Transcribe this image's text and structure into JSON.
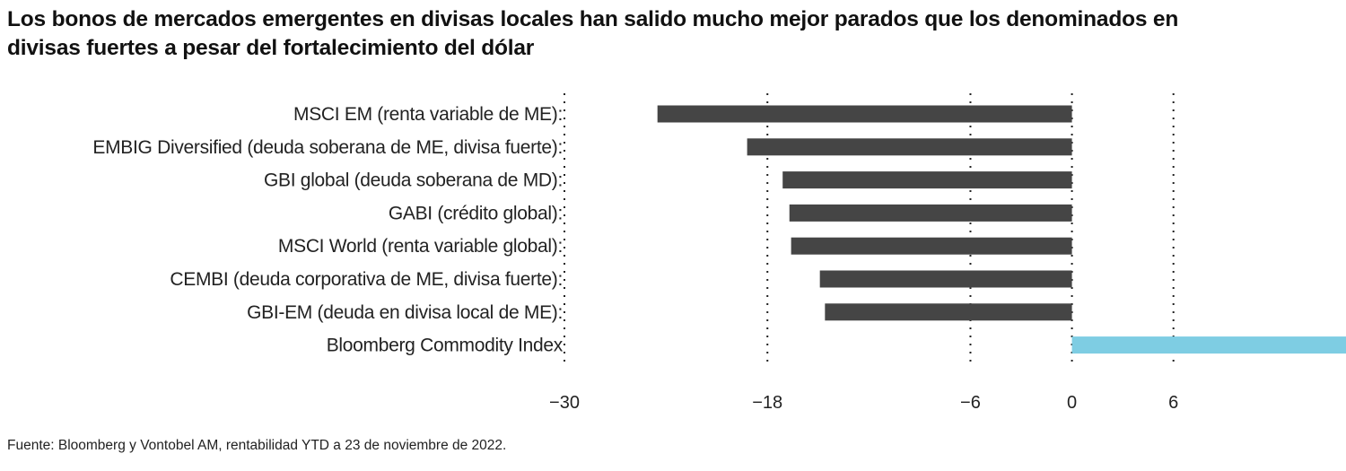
{
  "chart_data": {
    "type": "bar",
    "orientation": "horizontal",
    "title": "Los bonos de mercados emergentes en divisas locales han salido mucho mejor parados que los denominados en divisas fuertes a pesar del fortalecimiento del dólar",
    "title_lines": [
      "Los bonos de mercados emergentes en divisas locales han salido mucho mejor parados que los denominados en",
      "divisas fuertes a pesar del fortalecimiento del dólar"
    ],
    "categories": [
      "MSCI EM (renta variable de ME):",
      "EMBIG Diversified (deuda soberana de ME, divisa fuerte):",
      "GBI global (deuda soberana de MD):",
      "GABI (crédito global):",
      "MSCI World (renta variable global):",
      "CEMBI (deuda corporativa de ME, divisa fuerte):",
      "GBI-EM (deuda en divisa local de ME):",
      "Bloomberg Commodity Index"
    ],
    "values": [
      -24.5,
      -19.2,
      -17.1,
      -16.7,
      -16.6,
      -14.9,
      -14.6,
      16.5
    ],
    "bar_colors": [
      "#454545",
      "#454545",
      "#454545",
      "#454545",
      "#454545",
      "#454545",
      "#454545",
      "#7ecde3"
    ],
    "xticks": [
      -30,
      -18,
      -6,
      0,
      6
    ],
    "xtick_labels": [
      "−30",
      "−18",
      "−6",
      "0",
      "6"
    ],
    "xlim": [
      -30,
      16.2
    ],
    "grid": "vertical dotted",
    "xlabel": "",
    "ylabel": "",
    "source": "Fuente: Bloomberg y Vontobel AM, rentabilidad YTD a 23 de noviembre de 2022."
  }
}
